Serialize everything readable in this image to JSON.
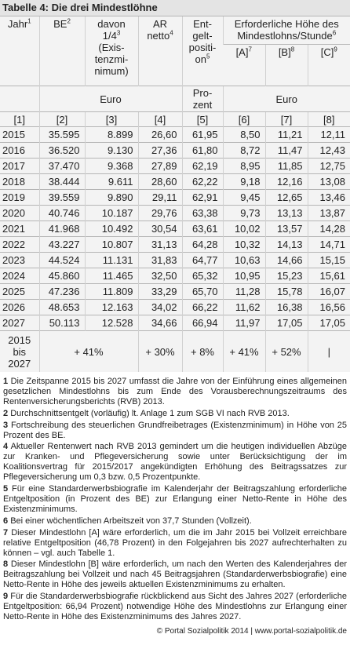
{
  "title": "Tabelle 4: Die drei Mindestlöhne",
  "table": {
    "header": [
      {
        "lines": [
          {
            "text": "Jahr",
            "sup": "1"
          }
        ]
      },
      {
        "lines": [
          {
            "text": "BE",
            "sup": "2"
          }
        ]
      },
      {
        "lines": [
          {
            "text": "davon"
          },
          {
            "text": "1/4",
            "sup": "3"
          },
          {
            "text": "(Exis-"
          },
          {
            "text": "tenzmi-"
          },
          {
            "text": "nimum)"
          }
        ]
      },
      {
        "lines": [
          {
            "text": "AR"
          },
          {
            "text": "netto",
            "sup": "4"
          }
        ]
      },
      {
        "lines": [
          {
            "text": "Ent-"
          },
          {
            "text": "gelt-"
          },
          {
            "text": "positi-"
          },
          {
            "text": "on",
            "sup": "5"
          }
        ]
      }
    ],
    "group_header": {
      "lines": [
        {
          "text": "Erforderliche Höhe des"
        },
        {
          "text": "Mindestlohns/Stunde",
          "sup": "6"
        }
      ]
    },
    "sub_headers": [
      {
        "text": "[A]",
        "sup": "7"
      },
      {
        "text": "[B]",
        "sup": "8"
      },
      {
        "text": "[C]",
        "sup": "9"
      }
    ],
    "units": [
      {
        "lines": [
          {
            "text": "Euro"
          }
        ]
      },
      {
        "lines": [
          {
            "text": "Pro-"
          },
          {
            "text": "zent"
          }
        ]
      },
      {
        "lines": [
          {
            "text": "Euro"
          }
        ]
      }
    ],
    "column_numbers": [
      "[1]",
      "[2]",
      "[3]",
      "[4]",
      "[5]",
      "[6]",
      "[7]",
      "[8]"
    ],
    "rows": [
      [
        "2015",
        "35.595",
        "8.899",
        "26,60",
        "61,95",
        "8,50",
        "11,21",
        "12,11"
      ],
      [
        "2016",
        "36.520",
        "9.130",
        "27,36",
        "61,80",
        "8,72",
        "11,47",
        "12,43"
      ],
      [
        "2017",
        "37.470",
        "9.368",
        "27,89",
        "62,19",
        "8,95",
        "11,85",
        "12,75"
      ],
      [
        "2018",
        "38.444",
        "9.611",
        "28,60",
        "62,22",
        "9,18",
        "12,16",
        "13,08"
      ],
      [
        "2019",
        "39.559",
        "9.890",
        "29,11",
        "62,91",
        "9,45",
        "12,65",
        "13,46"
      ],
      [
        "2020",
        "40.746",
        "10.187",
        "29,76",
        "63,38",
        "9,73",
        "13,13",
        "13,87"
      ],
      [
        "2021",
        "41.968",
        "10.492",
        "30,54",
        "63,61",
        "10,02",
        "13,57",
        "14,28"
      ],
      [
        "2022",
        "43.227",
        "10.807",
        "31,13",
        "64,28",
        "10,32",
        "14,13",
        "14,71"
      ],
      [
        "2023",
        "44.524",
        "11.131",
        "31,83",
        "64,77",
        "10,63",
        "14,66",
        "15,15"
      ],
      [
        "2024",
        "45.860",
        "11.465",
        "32,50",
        "65,32",
        "10,95",
        "15,23",
        "15,61"
      ],
      [
        "2025",
        "47.236",
        "11.809",
        "33,29",
        "65,70",
        "11,28",
        "15,78",
        "16,07"
      ],
      [
        "2026",
        "48.653",
        "12.163",
        "34,02",
        "66,22",
        "11,62",
        "16,38",
        "16,56"
      ],
      [
        "2027",
        "50.113",
        "12.528",
        "34,66",
        "66,94",
        "11,97",
        "17,05",
        "17,05"
      ]
    ],
    "summary": {
      "label": [
        "2015",
        "bis",
        "2027"
      ],
      "values": [
        "+ 41%",
        "+ 30%",
        "+ 8%",
        "+ 41%",
        "+ 52%",
        "|"
      ]
    }
  },
  "footnotes": [
    {
      "num": "1",
      "text": "Die Zeitspanne 2015 bis 2027 umfasst die Jahre von der Einführung eines allgemeinen gesetzlichen Mindestlohns bis zum Ende des Vorausberechnungszeitraums des Rentenversicherungsberichts (RVB) 2013."
    },
    {
      "num": "2",
      "text": "Durchschnittsentgelt (vorläufig) lt. Anlage 1 zum SGB VI nach RVB 2013."
    },
    {
      "num": "3",
      "text": "Fortschreibung des steuerlichen Grundfreibetrages (Existenzminimum) in Höhe von 25 Prozent des BE."
    },
    {
      "num": "4",
      "text": "Aktueller Rentenwert nach RVB 2013 gemindert um die heutigen individuellen Abzüge zur Kranken- und Pflegeversicherung sowie unter Berücksichtigung der im Koalitionsvertrag für 2015/2017 angekündigten Erhöhung des Beitragssatzes zur Pflegeversicherung um 0,3 bzw. 0,5 Prozentpunkte."
    },
    {
      "num": "5",
      "text": "Für eine Standarderwerbsbiografie im Kalenderjahr der Beitragszahlung erforderliche Entgeltposition (in Prozent des BE) zur Erlangung einer Netto-Rente in Höhe des Existenzminimums."
    },
    {
      "num": "6",
      "text": "Bei einer wöchentlichen Arbeitszeit von 37,7 Stunden (Vollzeit)."
    },
    {
      "num": "7",
      "text": "Dieser Mindestlohn [A] wäre erforderlich, um die im Jahr 2015 bei Vollzeit erreichbare relative Entgeltposition (46,78 Prozent) in den Folgejahren bis 2027 aufrechterhalten zu können – vgl. auch Tabelle 1."
    },
    {
      "num": "8",
      "text": "Dieser Mindestlohn [B] wäre erforderlich, um nach den Werten des Kalenderjahres der Beitragszahlung bei Vollzeit und nach 45 Beitragsjahren (Standarderwerbsbiografie) eine Netto-Rente in Höhe des jeweils aktuellen Existenzminimums zu erhalten."
    },
    {
      "num": "9",
      "text": "Für die Standarderwerbsbiografie rückblickend aus Sicht des Jahres 2027 (erforderliche Entgeltposition: 66,94 Prozent) notwendige Höhe des Mindestlohns zur Erlangung einer Netto-Rente in Höhe des Existenzminimums des Jahres 2027."
    }
  ],
  "source": "© Portal Sozialpolitik 2014 | www.portal-sozialpolitik.de"
}
